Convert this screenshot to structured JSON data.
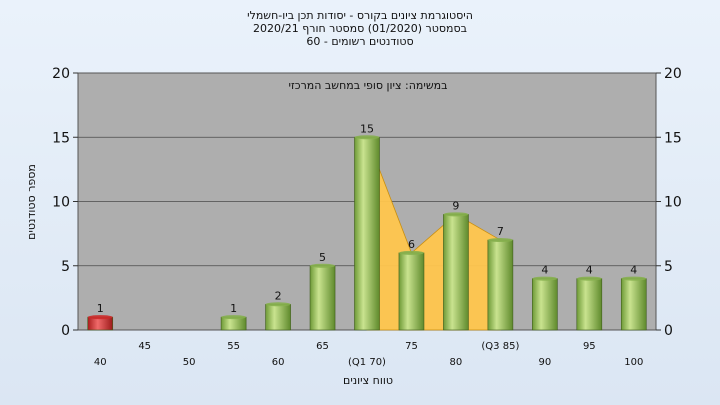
{
  "titles": {
    "line1": "היסטוגרמת ציונים בקורס - יסודות תכן ביו-חשמלי",
    "line2": "בסמסטר  (01/2020)  סמסטר חורף  2020/21",
    "line3": "סטודנטים רשומים - 60"
  },
  "chart_data": {
    "type": "bar",
    "title": "היסטוגרמת ציונים בקורס - יסודות תכן ביו-חשמלי",
    "annotation": "במשימה: ציון סופי במחשב המרכזי",
    "xlabel": "טווח ציונים",
    "ylabel": "מספר סטודנטים",
    "ylim": [
      0,
      20
    ],
    "yticks": [
      0,
      5,
      10,
      15,
      20
    ],
    "categories": [
      "40",
      "45",
      "50",
      "55",
      "60",
      "65",
      "(Q1 70)",
      "75",
      "80",
      "(Q3 85)",
      "90",
      "95",
      "100"
    ],
    "values": [
      1,
      0,
      0,
      1,
      2,
      5,
      15,
      6,
      9,
      7,
      4,
      4,
      4
    ],
    "data_labels": [
      "1",
      "",
      "",
      "1",
      "2",
      "5",
      "15",
      "6",
      "9",
      "7",
      "4",
      "4",
      "4"
    ],
    "bar_colors": [
      "#cc2a2a",
      "#86b04e",
      "#86b04e",
      "#86b04e",
      "#86b04e",
      "#86b04e",
      "#86b04e",
      "#86b04e",
      "#86b04e",
      "#86b04e",
      "#86b04e",
      "#86b04e",
      "#86b04e"
    ],
    "quartile_band": [
      "(Q1 70)",
      "(Q3 85)"
    ],
    "colors": {
      "plot_bg": "#aeaeae",
      "band": "#ffc64d",
      "bar": "#86b04e",
      "fail_bar": "#cc2a2a"
    },
    "grid": true
  }
}
